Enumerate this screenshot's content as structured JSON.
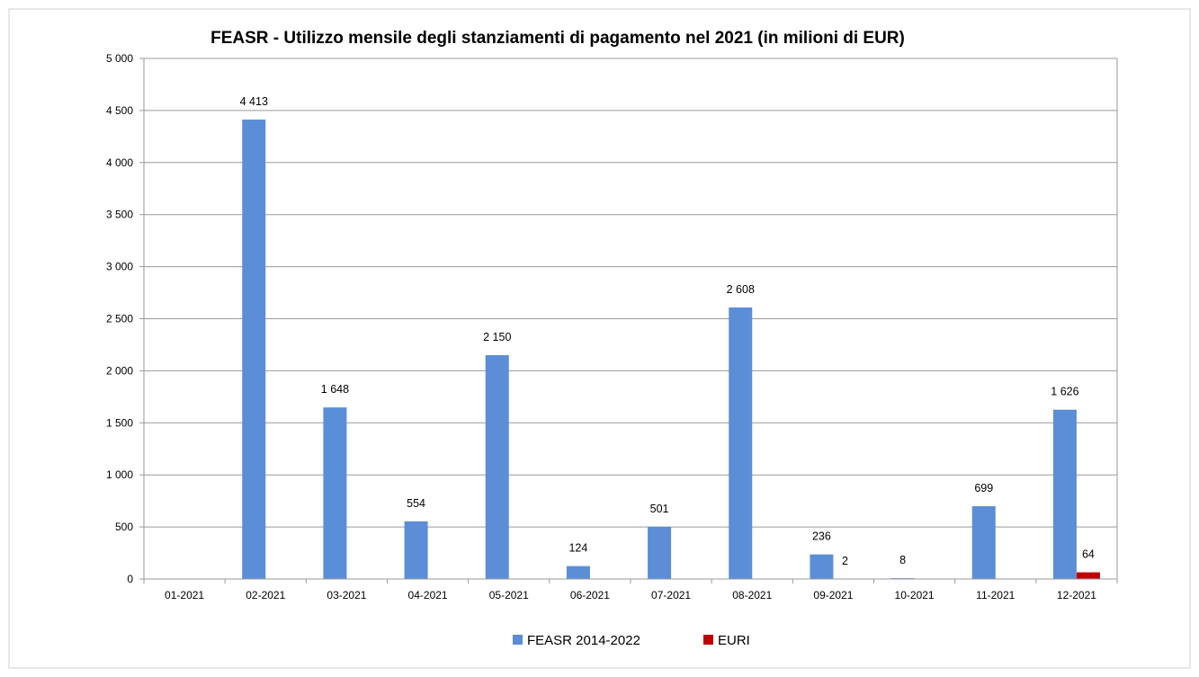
{
  "chart_data": {
    "type": "bar",
    "title": "FEASR - Utilizzo mensile degli stanziamenti di pagamento nel 2021 (in milioni di EUR)",
    "categories": [
      "01-2021",
      "02-2021",
      "03-2021",
      "04-2021",
      "05-2021",
      "06-2021",
      "07-2021",
      "08-2021",
      "09-2021",
      "10-2021",
      "11-2021",
      "12-2021"
    ],
    "series": [
      {
        "name": "FEASR 2014-2022",
        "color": "#5B8ED6",
        "values": [
          0,
          4413,
          1648,
          554,
          2150,
          124,
          501,
          2608,
          236,
          8,
          699,
          1626
        ],
        "labels": [
          "",
          "4 413",
          "1 648",
          "554",
          "2 150",
          "124",
          "501",
          "2 608",
          "236",
          "8",
          "699",
          "1 626"
        ]
      },
      {
        "name": "EURI",
        "color": "#C00000",
        "values": [
          0,
          0,
          0,
          0,
          0,
          0,
          0,
          0,
          2,
          0,
          0,
          64
        ],
        "labels": [
          "",
          "",
          "",
          "",
          "",
          "",
          "",
          "",
          "2",
          "",
          "",
          "64"
        ]
      }
    ],
    "xlabel": "",
    "ylabel": "",
    "ylim": [
      0,
      5000
    ],
    "yticks": [
      0,
      500,
      1000,
      1500,
      2000,
      2500,
      3000,
      3500,
      4000,
      4500,
      5000
    ],
    "ytick_labels": [
      "0",
      "500",
      "1 000",
      "1 500",
      "2 000",
      "2 500",
      "3 000",
      "3 500",
      "4 000",
      "4 500",
      "5 000"
    ],
    "grid": true,
    "legend_position": "bottom"
  }
}
